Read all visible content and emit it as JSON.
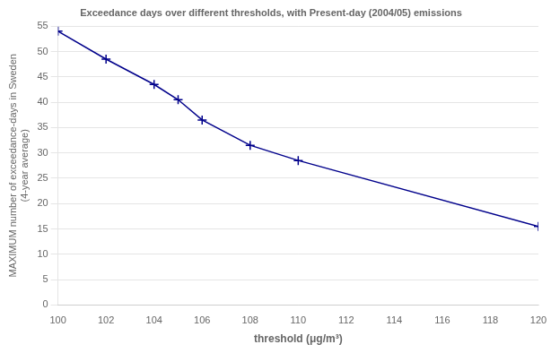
{
  "chart_data": {
    "type": "line",
    "title": "Exceedance days over different thresholds, with Present-day (2004/05) emissions",
    "xlabel": "threshold (μg/m³)",
    "ylabel": "MAXIMUM number of exceedance-days in Sweden\n(4-year average)",
    "x": [
      100,
      102,
      104,
      105,
      106,
      108,
      110,
      120
    ],
    "values": [
      54,
      48.5,
      43.5,
      40.5,
      36.5,
      31.5,
      28.5,
      15.5
    ],
    "color": "#00008B",
    "marker": "+",
    "xlim": [
      100,
      120
    ],
    "ylim": [
      0,
      55
    ],
    "xticks": [
      100,
      102,
      104,
      106,
      108,
      110,
      112,
      114,
      116,
      118,
      120
    ],
    "yticks": [
      0,
      5,
      10,
      15,
      20,
      25,
      30,
      35,
      40,
      45,
      50,
      55
    ],
    "grid": "y"
  }
}
